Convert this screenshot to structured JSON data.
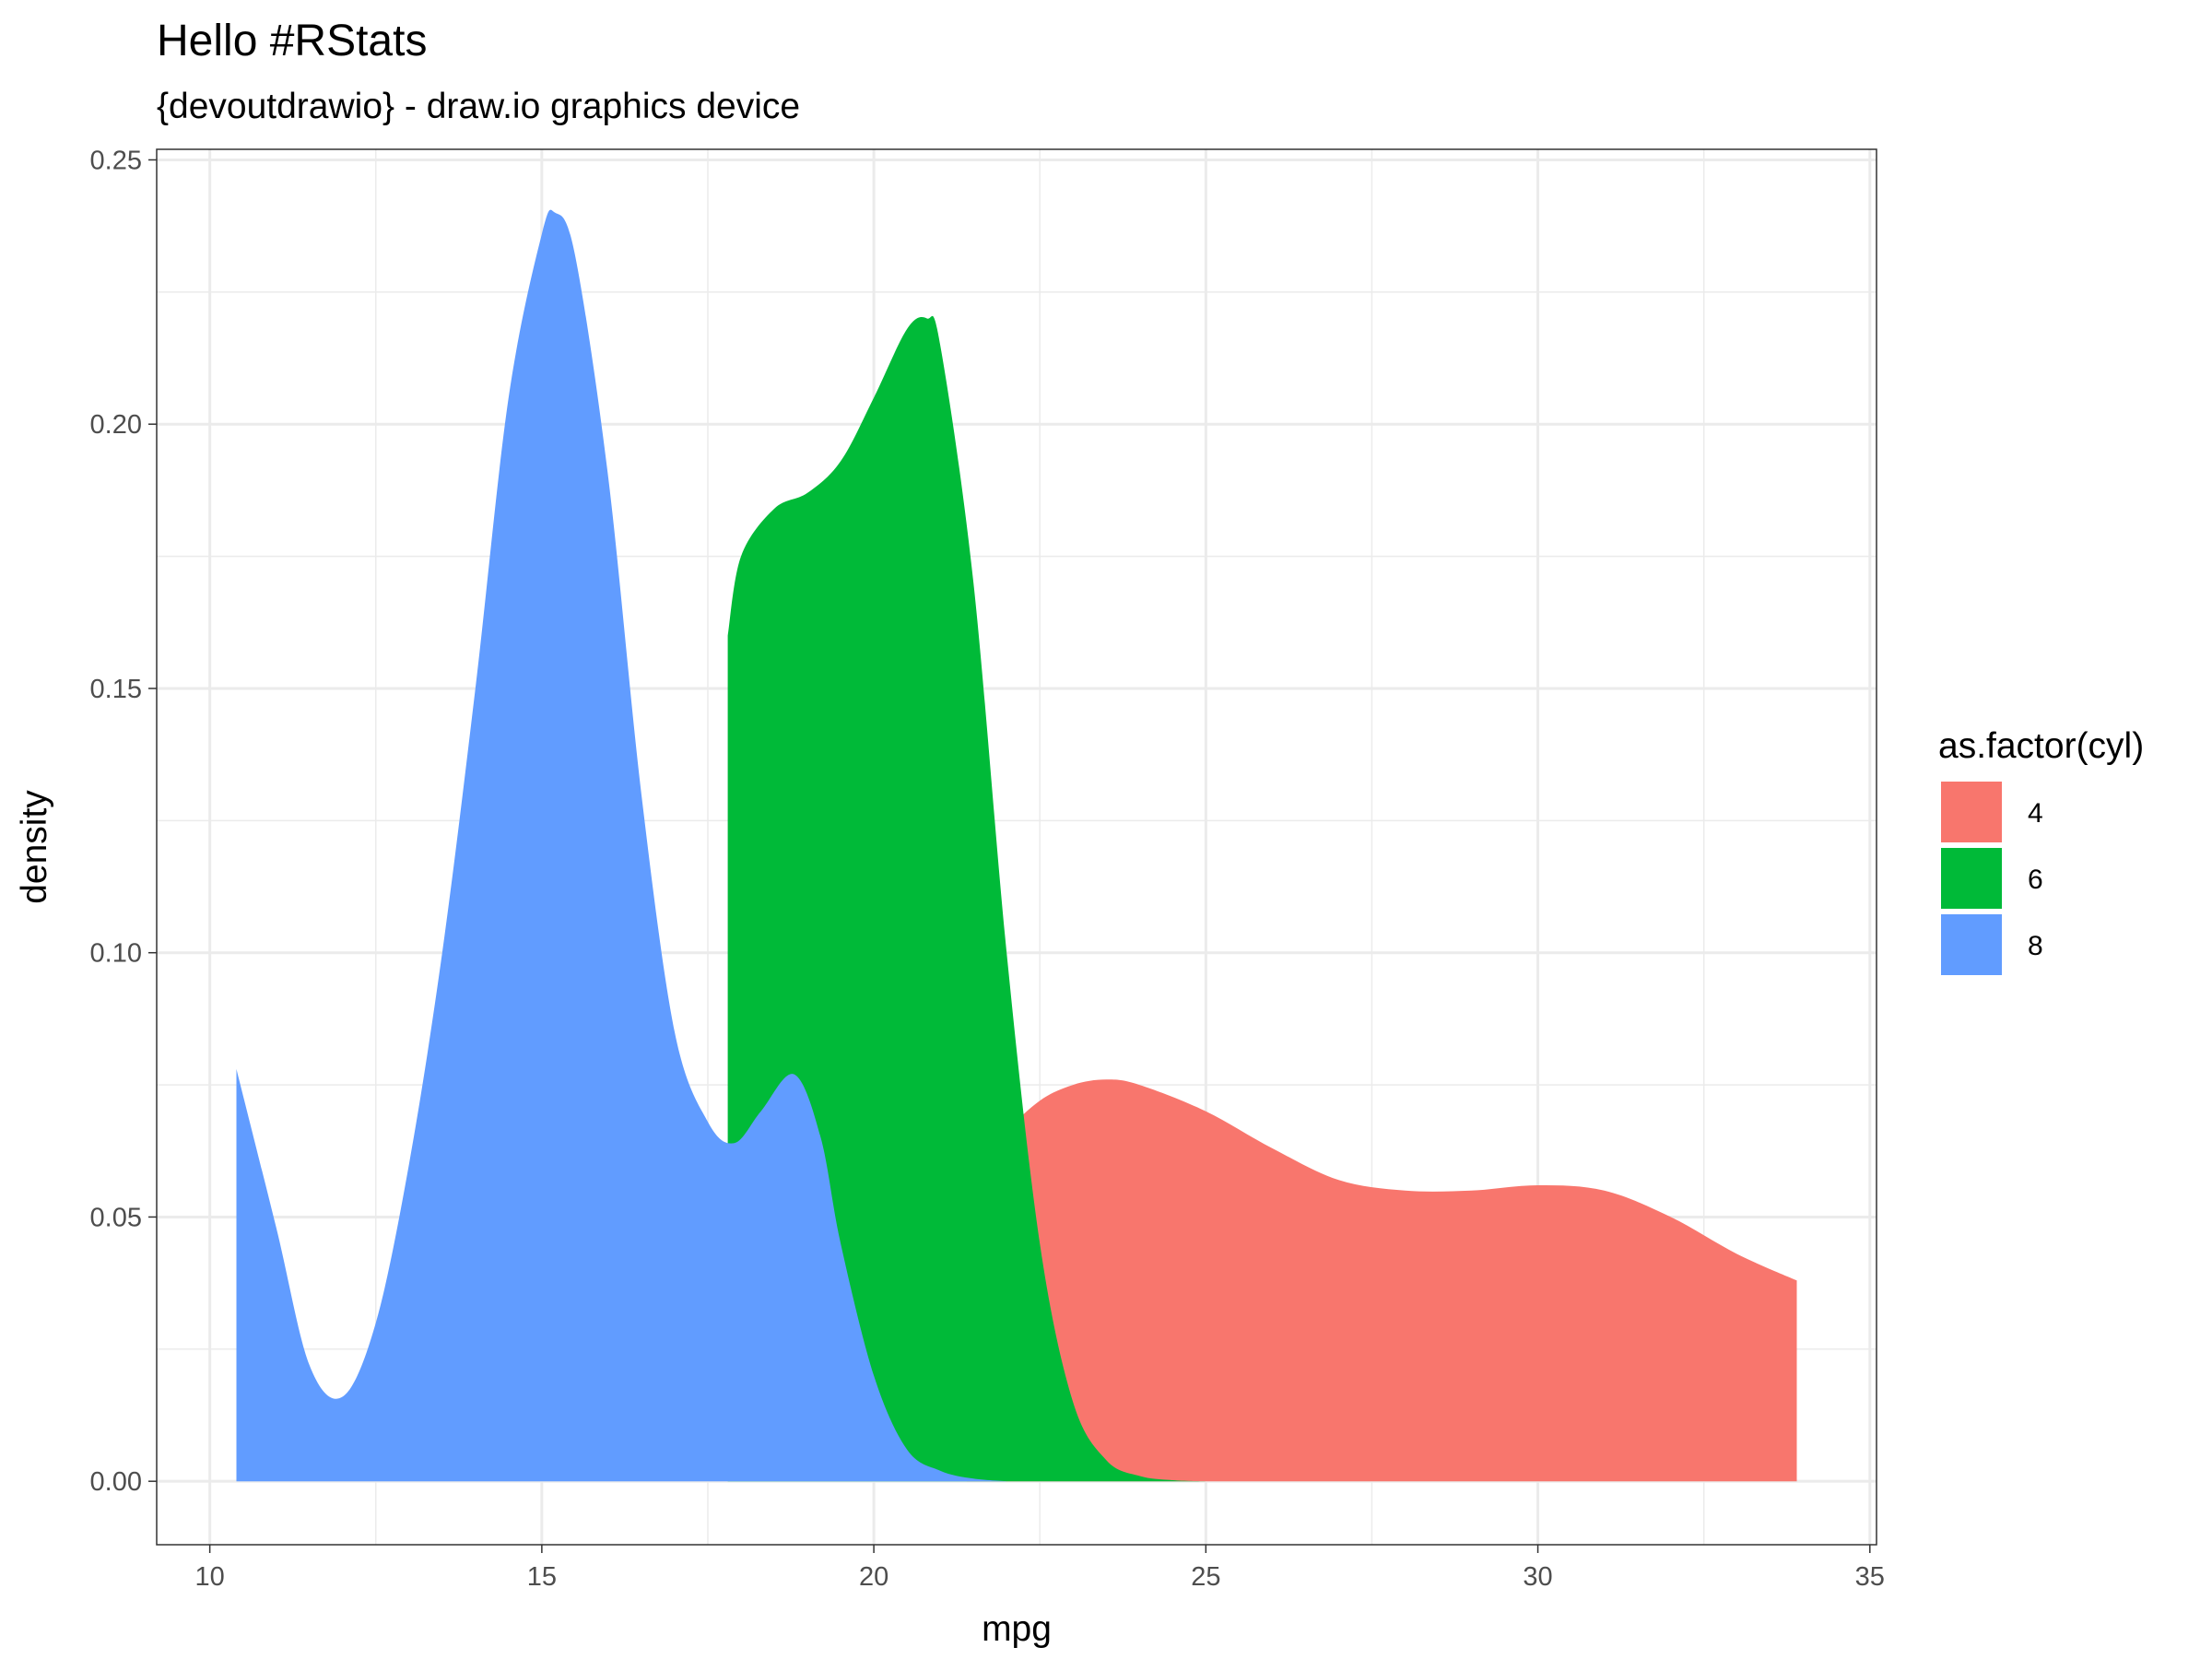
{
  "chart_data": {
    "type": "area",
    "title": "Hello #RStats",
    "subtitle": "{devoutdrawio} - draw.io graphics device",
    "xlabel": "mpg",
    "ylabel": "density",
    "xlim": [
      9.2,
      35.1
    ],
    "ylim": [
      -0.012,
      0.252
    ],
    "xticks": [
      10,
      15,
      20,
      25,
      30,
      35
    ],
    "xtick_labels": [
      "10",
      "15",
      "20",
      "25",
      "30",
      "35"
    ],
    "yticks": [
      0,
      0.05,
      0.1,
      0.15,
      0.2,
      0.25
    ],
    "ytick_labels": [
      "0.00",
      "0.05",
      "0.10",
      "0.15",
      "0.20",
      "0.25"
    ],
    "grid": true,
    "legend": {
      "title": "as.factor(cyl)",
      "position": "right",
      "entries": [
        "4",
        "6",
        "8"
      ]
    },
    "series": [
      {
        "name": "4",
        "color": "#F8766D",
        "x": [
          21.4,
          22.0,
          22.5,
          23.0,
          23.5,
          24.0,
          25.0,
          26.0,
          27.0,
          28.0,
          29.0,
          30.0,
          31.0,
          32.0,
          33.0,
          33.9
        ],
        "y": [
          0.056,
          0.066,
          0.072,
          0.075,
          0.076,
          0.075,
          0.07,
          0.063,
          0.057,
          0.055,
          0.055,
          0.056,
          0.055,
          0.05,
          0.043,
          0.038
        ]
      },
      {
        "name": "6",
        "color": "#00BA38",
        "x": [
          17.8,
          18.0,
          18.5,
          19.0,
          19.5,
          20.0,
          20.5,
          20.8,
          21.0,
          21.5,
          22.0,
          22.5,
          23.0,
          23.5,
          24.0,
          24.5,
          25.0
        ],
        "y": [
          0.16,
          0.175,
          0.184,
          0.187,
          0.193,
          0.205,
          0.218,
          0.22,
          0.215,
          0.17,
          0.1,
          0.045,
          0.015,
          0.004,
          0.001,
          0.0002,
          0.0
        ]
      },
      {
        "name": "8",
        "color": "#619CFF",
        "x": [
          10.4,
          11.0,
          11.5,
          12.0,
          12.5,
          13.0,
          13.5,
          14.0,
          14.5,
          15.0,
          15.2,
          15.5,
          16.0,
          16.5,
          17.0,
          17.5,
          17.9,
          18.3,
          18.8,
          19.2,
          19.5,
          20.0,
          20.5,
          21.0,
          21.5,
          22.0
        ],
        "y": [
          0.078,
          0.048,
          0.022,
          0.016,
          0.03,
          0.06,
          0.1,
          0.15,
          0.205,
          0.236,
          0.24,
          0.232,
          0.19,
          0.13,
          0.085,
          0.068,
          0.064,
          0.07,
          0.077,
          0.065,
          0.045,
          0.02,
          0.006,
          0.002,
          0.0005,
          0.0
        ]
      }
    ]
  }
}
